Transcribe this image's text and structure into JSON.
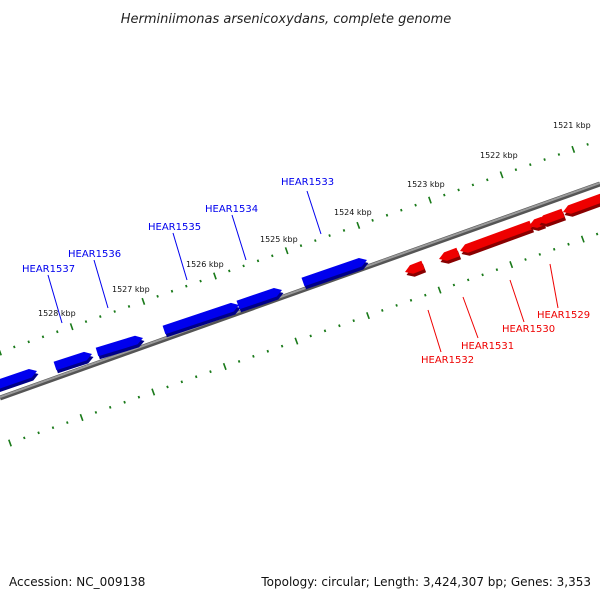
{
  "title": "Herminiimonas arsenicoxydans, complete genome",
  "footer": {
    "accession": "Accession: NC_009138",
    "summary": "Topology: circular; Length: 3,424,307 bp; Genes: 3,353"
  },
  "colors": {
    "forward": "#0000ee",
    "reverse": "#ee0000",
    "backbone": "#777777",
    "ticks": "#1a7a1a"
  },
  "kbp_labels": [
    "1521 kbp",
    "1522 kbp",
    "1523 kbp",
    "1524 kbp",
    "1525 kbp",
    "1526 kbp",
    "1527 kbp",
    "1528 kbp"
  ],
  "genes_forward": [
    "HEAR1533",
    "HEAR1534",
    "HEAR1535",
    "HEAR1536",
    "HEAR1537"
  ],
  "genes_reverse": [
    "HEAR1529",
    "HEAR1530",
    "HEAR1531",
    "HEAR1532"
  ]
}
